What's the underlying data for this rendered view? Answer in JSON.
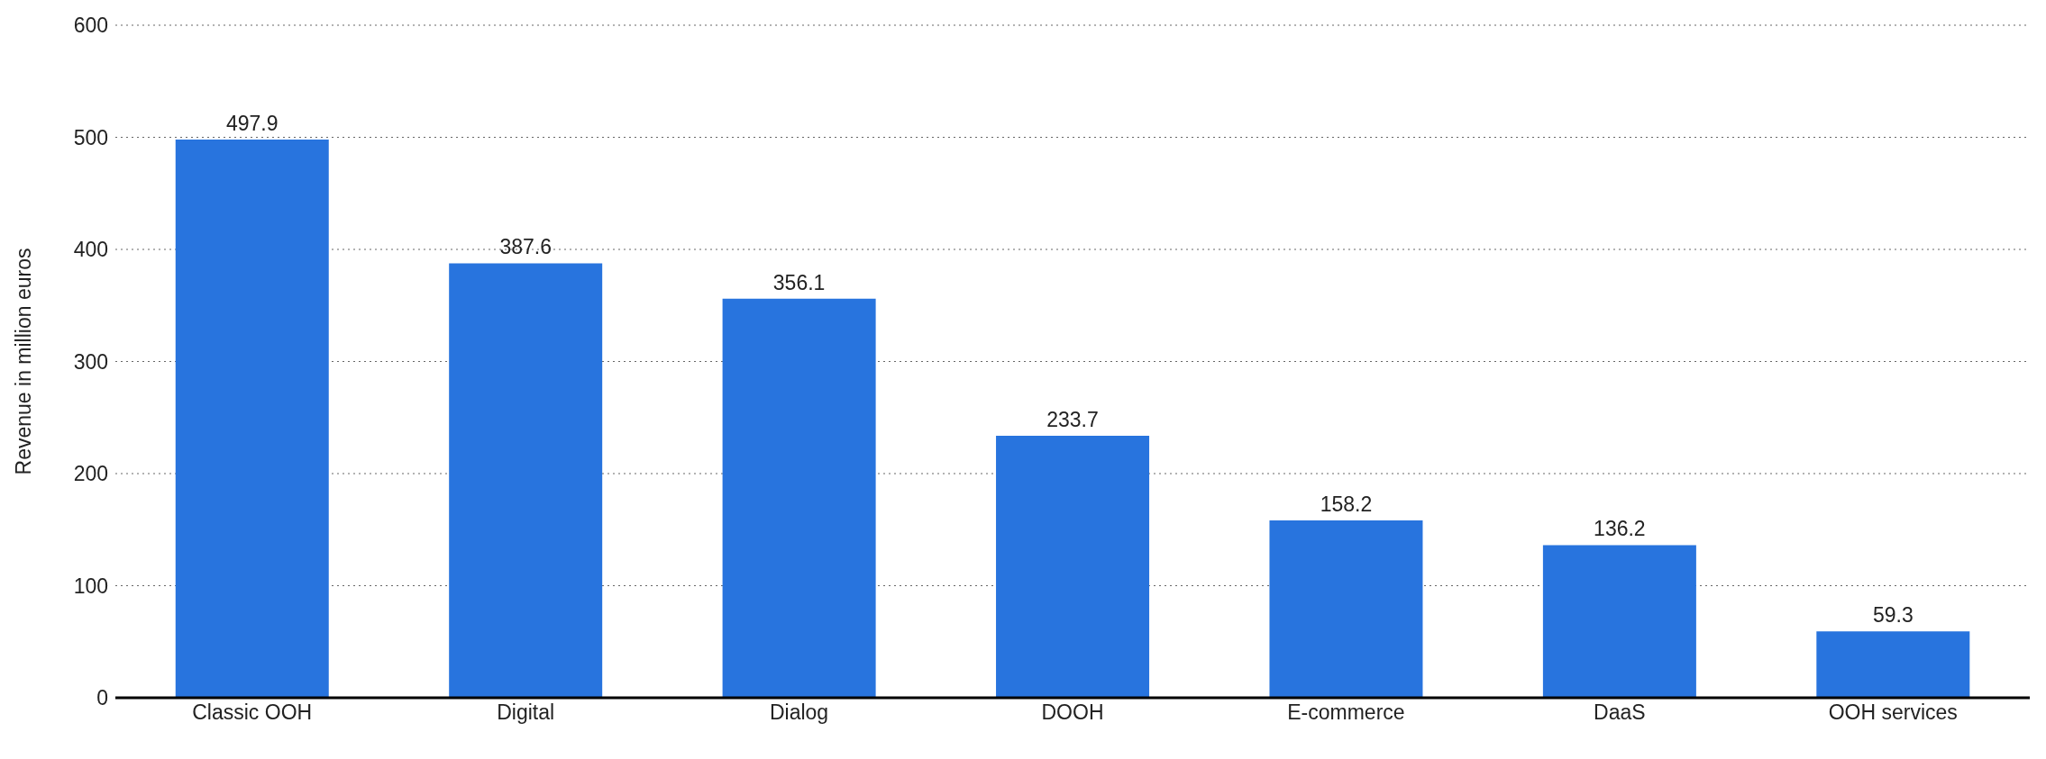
{
  "chart_data": {
    "type": "bar",
    "ylabel": "Revenue in million euros",
    "categories": [
      "Classic OOH",
      "Digital",
      "Dialog",
      "DOOH",
      "E-commerce",
      "DaaS",
      "OOH services"
    ],
    "values": [
      497.9,
      387.6,
      356.1,
      233.7,
      158.2,
      136.2,
      59.3
    ],
    "color": "#2874de",
    "ylim": [
      0,
      600
    ],
    "yticks": [
      0,
      100,
      200,
      300,
      400,
      500,
      600
    ],
    "grid": "y",
    "data_labels": true
  }
}
